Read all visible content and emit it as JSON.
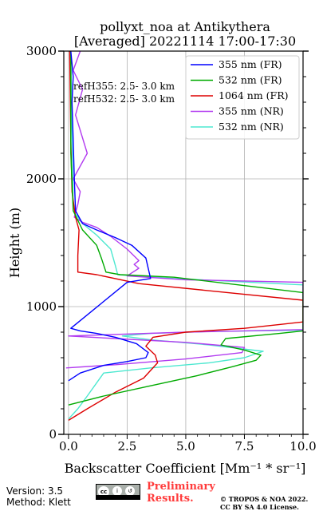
{
  "title_line1": "pollyxt_noa at Antikythera",
  "title_line2": "[Averaged] 20221114 17:00-17:30",
  "ref_lines": [
    "refH355:  2.5- 3.0 km",
    "refH532:  2.5- 3.0 km"
  ],
  "footer": {
    "version": "Version: 3.5",
    "method": "Method: Klett",
    "cc_label": "BY SA",
    "preliminary": [
      "Preliminary",
      "Results."
    ],
    "copyright": [
      "© TROPOS & NOA 2022.",
      "CC BY SA 4.0 License."
    ]
  },
  "chart_data": {
    "type": "line",
    "xlabel": "Backscatter Coefficient [Mm⁻¹ * sr⁻¹]",
    "ylabel": "Height (m)",
    "xlim": [
      -0.2,
      10
    ],
    "ylim": [
      0,
      3000
    ],
    "xticks": [
      0,
      2.5,
      5,
      7.5,
      10
    ],
    "xtick_labels": [
      "0.0",
      "2.5",
      "5.0",
      "7.5",
      "10.0"
    ],
    "yticks": [
      0,
      1000,
      2000,
      3000
    ],
    "ytick_labels": [
      "0",
      "1000",
      "2000",
      "3000"
    ],
    "grid": true,
    "legend_position": "top-right",
    "series": [
      {
        "name": "355 nm (FR)",
        "color": "#0000ff",
        "x": [
          0,
          0.5,
          1.5,
          2.5,
          3.3,
          3.4,
          2.9,
          2.0,
          1.2,
          0.5,
          0.1,
          2.5,
          3.5,
          3.3,
          2.7,
          2.0,
          1.2,
          0.6,
          0.3,
          0.25,
          0.2,
          0.15,
          0.2,
          0.1
        ],
        "y": [
          420,
          480,
          540,
          570,
          600,
          640,
          710,
          760,
          790,
          810,
          830,
          1190,
          1220,
          1380,
          1480,
          1540,
          1600,
          1650,
          1750,
          2000,
          2300,
          2600,
          2800,
          3000
        ]
      },
      {
        "name": "532 nm (FR)",
        "color": "#00aa00",
        "x": [
          0,
          1.5,
          3.5,
          5.5,
          7.0,
          8.0,
          8.2,
          7.5,
          6.5,
          6.7,
          9.0,
          10.0,
          10.0,
          4.5,
          2.2,
          1.6,
          1.4,
          1.2,
          0.6,
          0.2,
          0.1,
          0.1
        ],
        "y": [
          230,
          300,
          380,
          460,
          530,
          580,
          620,
          660,
          700,
          750,
          790,
          810,
          1110,
          1230,
          1250,
          1270,
          1380,
          1480,
          1600,
          1750,
          2200,
          3000
        ]
      },
      {
        "name": "1064 nm (FR)",
        "color": "#dd0000",
        "x": [
          0,
          0.8,
          2.0,
          3.2,
          3.8,
          3.7,
          3.3,
          3.6,
          5.0,
          7.5,
          9.0,
          10.0,
          10.0,
          3.0,
          1.2,
          0.4,
          0.4,
          0.45,
          0.3,
          0.15,
          0.1,
          0.05
        ],
        "y": [
          110,
          200,
          330,
          440,
          560,
          620,
          690,
          760,
          800,
          830,
          860,
          880,
          1050,
          1180,
          1250,
          1270,
          1400,
          1600,
          1700,
          1900,
          2300,
          3000
        ]
      },
      {
        "name": "355 nm (NR)",
        "color": "#b23cf0",
        "x": [
          -0.1,
          2.0,
          5.0,
          7.4,
          7.5,
          5.0,
          2.0,
          0.0,
          5.0,
          10.0,
          10.0,
          5.0,
          2.5,
          3.0,
          2.8,
          3.0,
          2.5,
          1.8,
          1.2,
          0.6,
          0.25,
          0.4,
          0.5,
          0.2,
          0.8,
          0.3,
          0.6,
          0.2,
          0.5
        ],
        "y": [
          520,
          545,
          590,
          640,
          680,
          720,
          750,
          770,
          800,
          820,
          1190,
          1210,
          1240,
          1300,
          1330,
          1360,
          1450,
          1550,
          1620,
          1660,
          1700,
          1800,
          1900,
          2000,
          2200,
          2500,
          2700,
          2850,
          3000
        ]
      },
      {
        "name": "532 nm (NR)",
        "color": "#4de8d0",
        "x": [
          0,
          0.4,
          0.8,
          1.5,
          3.5,
          6.0,
          7.5,
          8.3,
          6.0,
          3.5,
          2.3,
          3.5,
          6.0,
          10.0,
          10.0,
          4.5,
          2.1,
          2.0,
          1.8,
          1.2,
          0.6,
          0.2,
          0.1
        ],
        "y": [
          120,
          200,
          300,
          480,
          520,
          560,
          600,
          650,
          700,
          740,
          770,
          790,
          805,
          815,
          1170,
          1220,
          1250,
          1320,
          1450,
          1560,
          1650,
          1750,
          3000
        ]
      }
    ]
  }
}
